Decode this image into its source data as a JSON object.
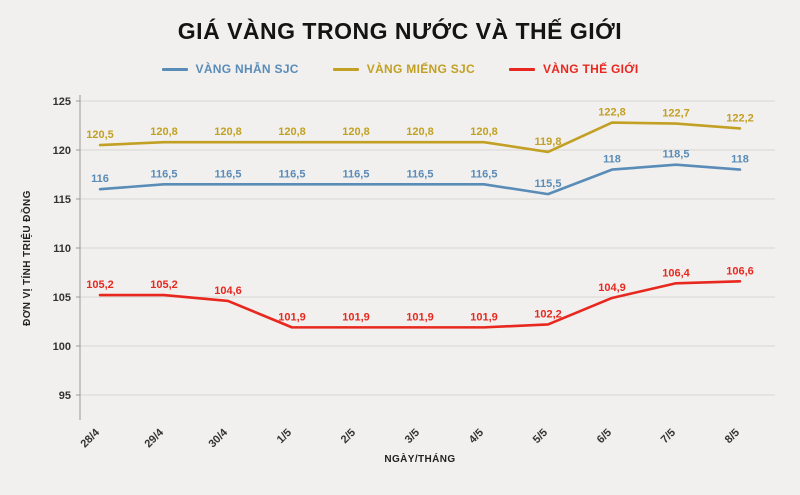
{
  "chart_data": {
    "type": "line",
    "title": "GIÁ VÀNG TRONG NƯỚC VÀ THẾ GIỚI",
    "xlabel": "NGÀY/THÁNG",
    "ylabel": "ĐƠN VỊ TÍNH TRIỆU ĐỒNG",
    "ylim": [
      95,
      125
    ],
    "y_ticks": [
      125,
      120,
      115,
      110,
      105,
      100,
      95
    ],
    "grid": true,
    "legend_position": "top",
    "categories": [
      "28/4",
      "29/4",
      "30/4",
      "1/5",
      "2/5",
      "3/5",
      "4/5",
      "5/5",
      "6/5",
      "7/5",
      "8/5"
    ],
    "series": [
      {
        "name": "VÀNG NHẪN SJC",
        "color": "#5a8cb8",
        "values": [
          116,
          116.5,
          116.5,
          116.5,
          116.5,
          116.5,
          116.5,
          115.5,
          118,
          118.5,
          118
        ],
        "labels": [
          "116",
          "116,5",
          "116,5",
          "116,5",
          "116,5",
          "116,5",
          "116,5",
          "115,5",
          "118",
          "118,5",
          "118"
        ]
      },
      {
        "name": "VÀNG MIẾNG SJC",
        "color": "#c2a024",
        "values": [
          120.5,
          120.8,
          120.8,
          120.8,
          120.8,
          120.8,
          120.8,
          119.8,
          122.8,
          122.7,
          122.2
        ],
        "labels": [
          "120,5",
          "120,8",
          "120,8",
          "120,8",
          "120,8",
          "120,8",
          "120,8",
          "119,8",
          "122,8",
          "122,7",
          "122,2"
        ]
      },
      {
        "name": "VÀNG THẾ GIỚI",
        "color": "#e8281e",
        "values": [
          105.2,
          105.2,
          104.6,
          101.9,
          101.9,
          101.9,
          101.9,
          102.2,
          104.9,
          106.4,
          106.6
        ],
        "labels": [
          "105,2",
          "105,2",
          "104,6",
          "101,9",
          "101,9",
          "101,9",
          "101,9",
          "102,2",
          "104,9",
          "106,4",
          "106,6"
        ]
      }
    ]
  },
  "colors": {
    "background": "#f1f0ee",
    "grid": "#d8d6d2",
    "axis": "#9a9894",
    "tick_text": "#333333",
    "title_text": "#141414"
  }
}
